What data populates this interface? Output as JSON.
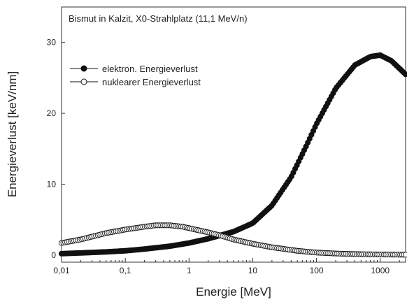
{
  "chart_data": {
    "type": "scatter",
    "title": "Bismut in Kalzit, X0-Strahlplatz (11,1 MeV/n)",
    "xlabel": "Energie [MeV]",
    "ylabel": "Energieverlust [keV/nm]",
    "x_scale": "log",
    "xlim": [
      0.01,
      2500
    ],
    "ylim": [
      -1,
      35
    ],
    "grid": false,
    "legend_position": "upper-left",
    "x_ticks": [
      {
        "value": 0.01,
        "label": "0,01"
      },
      {
        "value": 0.1,
        "label": "0,1"
      },
      {
        "value": 1,
        "label": "1"
      },
      {
        "value": 10,
        "label": "10"
      },
      {
        "value": 100,
        "label": "100"
      },
      {
        "value": 1000,
        "label": "1000"
      }
    ],
    "y_ticks": [
      {
        "value": 0,
        "label": "0"
      },
      {
        "value": 10,
        "label": "10"
      },
      {
        "value": 20,
        "label": "20"
      },
      {
        "value": 30,
        "label": "30"
      }
    ],
    "series": [
      {
        "name": "elektron. Energieverlust",
        "marker": "filled-circle",
        "color": "#111111",
        "points": [
          [
            0.01,
            0.2
          ],
          [
            0.02,
            0.3
          ],
          [
            0.05,
            0.45
          ],
          [
            0.1,
            0.6
          ],
          [
            0.2,
            0.85
          ],
          [
            0.5,
            1.25
          ],
          [
            1,
            1.7
          ],
          [
            2,
            2.3
          ],
          [
            5,
            3.3
          ],
          [
            10,
            4.5
          ],
          [
            20,
            7.0
          ],
          [
            40,
            11.0
          ],
          [
            70,
            15.5
          ],
          [
            100,
            18.5
          ],
          [
            200,
            23.5
          ],
          [
            400,
            26.8
          ],
          [
            700,
            28.0
          ],
          [
            1000,
            28.2
          ],
          [
            1500,
            27.4
          ],
          [
            2500,
            25.5
          ]
        ]
      },
      {
        "name": "nuklearer Energieverlust",
        "marker": "open-circle",
        "color": "#111111",
        "points": [
          [
            0.01,
            1.7
          ],
          [
            0.02,
            2.2
          ],
          [
            0.05,
            3.1
          ],
          [
            0.1,
            3.6
          ],
          [
            0.2,
            4.0
          ],
          [
            0.3,
            4.2
          ],
          [
            0.5,
            4.2
          ],
          [
            0.8,
            4.0
          ],
          [
            1,
            3.8
          ],
          [
            2,
            3.2
          ],
          [
            3,
            2.8
          ],
          [
            5,
            2.2
          ],
          [
            10,
            1.6
          ],
          [
            20,
            1.1
          ],
          [
            50,
            0.6
          ],
          [
            100,
            0.35
          ],
          [
            200,
            0.22
          ],
          [
            500,
            0.12
          ],
          [
            1000,
            0.08
          ],
          [
            2500,
            0.05
          ]
        ]
      }
    ]
  }
}
